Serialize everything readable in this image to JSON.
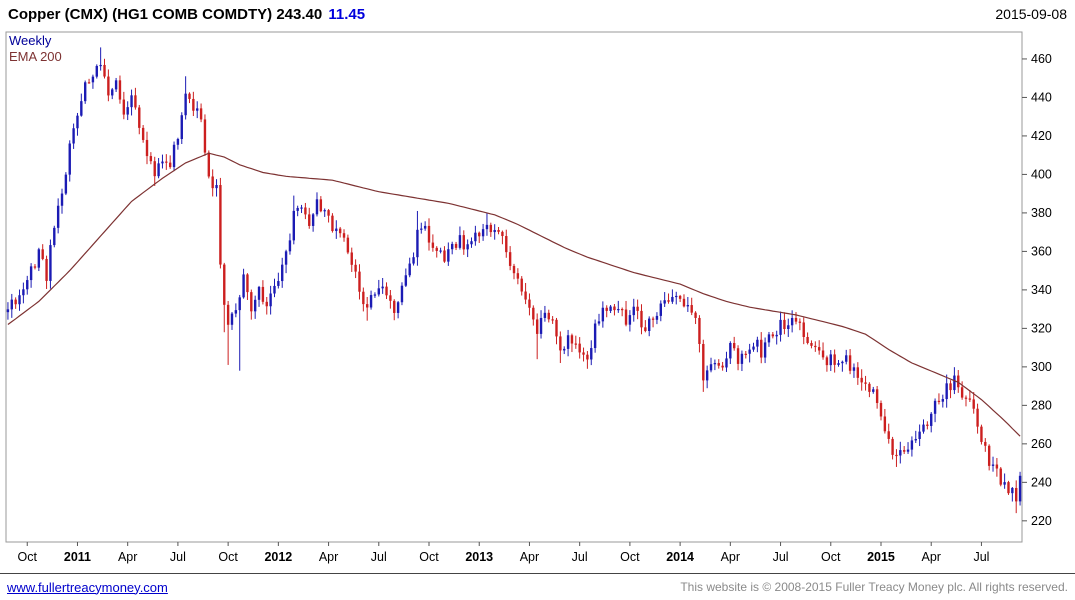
{
  "header": {
    "instrument": "Copper (CMX) (HG1 COMB COMDTY)",
    "price": "243.40",
    "change": "11.45",
    "date": "2015-09-08"
  },
  "legend": {
    "timeframe": "Weekly",
    "overlay": "EMA 200"
  },
  "footer": {
    "link": "www.fullertreacymoney.com",
    "copyright": "This website is © 2008-2015 Fuller Treacy Money plc. All rights reserved."
  },
  "chart_data": {
    "type": "candlestick",
    "title": "Copper (CMX) (HG1 COMB COMDTY)",
    "last_price": 243.4,
    "change": 11.45,
    "date": "2015-09-08",
    "timeframe": "Weekly",
    "overlay": "EMA 200",
    "ylim": [
      209,
      474
    ],
    "yticks": [
      220,
      240,
      260,
      280,
      300,
      320,
      340,
      360,
      380,
      400,
      420,
      440,
      460
    ],
    "weeks_total": 263,
    "x_ticks": [
      {
        "week": 5,
        "label": "Oct",
        "bold": false
      },
      {
        "week": 18,
        "label": "2011",
        "bold": true
      },
      {
        "week": 31,
        "label": "Apr",
        "bold": false
      },
      {
        "week": 44,
        "label": "Jul",
        "bold": false
      },
      {
        "week": 57,
        "label": "Oct",
        "bold": false
      },
      {
        "week": 70,
        "label": "2012",
        "bold": true
      },
      {
        "week": 83,
        "label": "Apr",
        "bold": false
      },
      {
        "week": 96,
        "label": "Jul",
        "bold": false
      },
      {
        "week": 109,
        "label": "Oct",
        "bold": false
      },
      {
        "week": 122,
        "label": "2013",
        "bold": true
      },
      {
        "week": 135,
        "label": "Apr",
        "bold": false
      },
      {
        "week": 148,
        "label": "Jul",
        "bold": false
      },
      {
        "week": 161,
        "label": "Oct",
        "bold": false
      },
      {
        "week": 174,
        "label": "2014",
        "bold": true
      },
      {
        "week": 187,
        "label": "Apr",
        "bold": false
      },
      {
        "week": 200,
        "label": "Jul",
        "bold": false
      },
      {
        "week": 213,
        "label": "Oct",
        "bold": false
      },
      {
        "week": 226,
        "label": "2015",
        "bold": true
      },
      {
        "week": 239,
        "label": "Apr",
        "bold": false
      },
      {
        "week": 252,
        "label": "Jul",
        "bold": false
      }
    ],
    "close_anchors": [
      [
        0,
        330
      ],
      [
        4,
        340
      ],
      [
        6,
        352
      ],
      [
        8,
        358
      ],
      [
        10,
        348
      ],
      [
        12,
        372
      ],
      [
        14,
        390
      ],
      [
        16,
        415
      ],
      [
        18,
        432
      ],
      [
        20,
        445
      ],
      [
        22,
        448
      ],
      [
        24,
        458
      ],
      [
        26,
        440
      ],
      [
        28,
        448
      ],
      [
        30,
        432
      ],
      [
        32,
        440
      ],
      [
        34,
        425
      ],
      [
        36,
        412
      ],
      [
        38,
        398
      ],
      [
        40,
        410
      ],
      [
        42,
        406
      ],
      [
        44,
        418
      ],
      [
        46,
        440
      ],
      [
        48,
        436
      ],
      [
        50,
        428
      ],
      [
        52,
        400
      ],
      [
        54,
        392
      ],
      [
        55,
        352
      ],
      [
        56,
        330
      ],
      [
        57,
        322
      ],
      [
        59,
        330
      ],
      [
        61,
        345
      ],
      [
        63,
        328
      ],
      [
        65,
        342
      ],
      [
        67,
        332
      ],
      [
        69,
        344
      ],
      [
        70,
        345
      ],
      [
        72,
        360
      ],
      [
        74,
        378
      ],
      [
        76,
        384
      ],
      [
        78,
        376
      ],
      [
        80,
        385
      ],
      [
        82,
        380
      ],
      [
        83,
        376
      ],
      [
        85,
        372
      ],
      [
        87,
        366
      ],
      [
        89,
        352
      ],
      [
        91,
        342
      ],
      [
        93,
        330
      ],
      [
        95,
        338
      ],
      [
        96,
        344
      ],
      [
        98,
        336
      ],
      [
        100,
        328
      ],
      [
        102,
        342
      ],
      [
        104,
        352
      ],
      [
        106,
        368
      ],
      [
        108,
        374
      ],
      [
        109,
        368
      ],
      [
        111,
        360
      ],
      [
        113,
        355
      ],
      [
        115,
        362
      ],
      [
        117,
        366
      ],
      [
        119,
        361
      ],
      [
        121,
        367
      ],
      [
        122,
        370
      ],
      [
        124,
        374
      ],
      [
        126,
        373
      ],
      [
        128,
        368
      ],
      [
        130,
        352
      ],
      [
        132,
        344
      ],
      [
        134,
        336
      ],
      [
        135,
        330
      ],
      [
        137,
        316
      ],
      [
        139,
        328
      ],
      [
        141,
        322
      ],
      [
        143,
        308
      ],
      [
        145,
        316
      ],
      [
        147,
        312
      ],
      [
        148,
        310
      ],
      [
        150,
        304
      ],
      [
        152,
        322
      ],
      [
        154,
        328
      ],
      [
        156,
        334
      ],
      [
        158,
        330
      ],
      [
        160,
        324
      ],
      [
        161,
        330
      ],
      [
        163,
        326
      ],
      [
        165,
        320
      ],
      [
        167,
        326
      ],
      [
        169,
        332
      ],
      [
        171,
        336
      ],
      [
        173,
        334
      ],
      [
        174,
        336
      ],
      [
        176,
        330
      ],
      [
        178,
        322
      ],
      [
        180,
        296
      ],
      [
        182,
        304
      ],
      [
        184,
        300
      ],
      [
        186,
        306
      ],
      [
        187,
        310
      ],
      [
        189,
        304
      ],
      [
        191,
        310
      ],
      [
        193,
        314
      ],
      [
        195,
        308
      ],
      [
        197,
        314
      ],
      [
        199,
        320
      ],
      [
        200,
        324
      ],
      [
        202,
        322
      ],
      [
        204,
        326
      ],
      [
        206,
        316
      ],
      [
        208,
        314
      ],
      [
        210,
        308
      ],
      [
        212,
        304
      ],
      [
        213,
        305
      ],
      [
        215,
        300
      ],
      [
        217,
        304
      ],
      [
        219,
        298
      ],
      [
        221,
        294
      ],
      [
        223,
        290
      ],
      [
        225,
        284
      ],
      [
        226,
        276
      ],
      [
        228,
        262
      ],
      [
        230,
        252
      ],
      [
        232,
        256
      ],
      [
        234,
        262
      ],
      [
        236,
        266
      ],
      [
        238,
        272
      ],
      [
        239,
        276
      ],
      [
        241,
        282
      ],
      [
        243,
        290
      ],
      [
        245,
        292
      ],
      [
        247,
        286
      ],
      [
        249,
        280
      ],
      [
        251,
        270
      ],
      [
        252,
        262
      ],
      [
        254,
        252
      ],
      [
        256,
        244
      ],
      [
        258,
        240
      ],
      [
        260,
        234
      ],
      [
        261,
        228
      ],
      [
        262,
        243.4
      ]
    ],
    "extremes": [
      {
        "week": 24,
        "high": 466
      },
      {
        "week": 38,
        "low": 394
      },
      {
        "week": 46,
        "high": 451
      },
      {
        "week": 56,
        "low": 318
      },
      {
        "week": 57,
        "low": 301
      },
      {
        "week": 60,
        "low": 298
      },
      {
        "week": 74,
        "high": 389
      },
      {
        "week": 93,
        "low": 324
      },
      {
        "week": 106,
        "high": 381
      },
      {
        "week": 124,
        "high": 380
      },
      {
        "week": 137,
        "low": 304
      },
      {
        "week": 143,
        "low": 302
      },
      {
        "week": 150,
        "low": 299
      },
      {
        "week": 180,
        "low": 287
      },
      {
        "week": 230,
        "low": 248
      },
      {
        "week": 243,
        "high": 296
      },
      {
        "week": 261,
        "low": 224
      }
    ],
    "ema_anchors": [
      [
        0,
        322
      ],
      [
        8,
        334
      ],
      [
        16,
        350
      ],
      [
        24,
        368
      ],
      [
        32,
        386
      ],
      [
        40,
        398
      ],
      [
        46,
        406
      ],
      [
        52,
        411
      ],
      [
        56,
        409
      ],
      [
        60,
        405
      ],
      [
        66,
        401
      ],
      [
        72,
        399
      ],
      [
        78,
        398
      ],
      [
        84,
        397
      ],
      [
        90,
        394
      ],
      [
        96,
        391
      ],
      [
        102,
        389
      ],
      [
        108,
        387
      ],
      [
        114,
        385
      ],
      [
        120,
        382
      ],
      [
        126,
        379
      ],
      [
        132,
        374
      ],
      [
        138,
        368
      ],
      [
        144,
        362
      ],
      [
        150,
        357
      ],
      [
        156,
        353
      ],
      [
        162,
        349
      ],
      [
        168,
        346
      ],
      [
        174,
        343
      ],
      [
        180,
        338
      ],
      [
        186,
        334
      ],
      [
        192,
        331
      ],
      [
        198,
        329
      ],
      [
        204,
        327
      ],
      [
        210,
        324
      ],
      [
        216,
        321
      ],
      [
        222,
        317
      ],
      [
        228,
        309
      ],
      [
        234,
        302
      ],
      [
        240,
        297
      ],
      [
        246,
        292
      ],
      [
        252,
        283
      ],
      [
        258,
        272
      ],
      [
        262,
        264
      ]
    ],
    "colors": {
      "up": "#1b1bb4",
      "down": "#cc1f1f",
      "ema": "#7d3232",
      "axis": "#555555",
      "text": "#000000",
      "frame": "#9a9a9a",
      "accent_change": "#0000dd",
      "legend_weekly": "#000099",
      "legend_ema": "#7d3232",
      "link": "#0000cc",
      "copyright": "#8a8a8a"
    }
  }
}
